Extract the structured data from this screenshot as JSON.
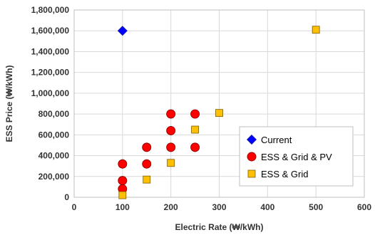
{
  "chart_data": {
    "type": "scatter",
    "xlabel": "Electric Rate (₩/kWh)",
    "ylabel": "ESS Price (₩/kWh)",
    "xlim": [
      0,
      600
    ],
    "ylim": [
      0,
      1800000
    ],
    "x_ticks": [
      "0",
      "100",
      "200",
      "300",
      "400",
      "500",
      "600"
    ],
    "y_ticks": [
      "0",
      "200,000",
      "400,000",
      "600,000",
      "800,000",
      "1,000,000",
      "1,200,000",
      "1,400,000",
      "1,600,000",
      "1,800,000"
    ],
    "grid": true,
    "legend_position": "bottom-right",
    "series": [
      {
        "name": "Current",
        "marker": "diamond",
        "color": "#0000ff",
        "points": [
          [
            100,
            1600000
          ]
        ]
      },
      {
        "name": "ESS & Grid & PV",
        "marker": "circle",
        "color": "#ff0000",
        "points": [
          [
            100,
            80000
          ],
          [
            100,
            160000
          ],
          [
            100,
            320000
          ],
          [
            150,
            320000
          ],
          [
            150,
            480000
          ],
          [
            200,
            480000
          ],
          [
            200,
            640000
          ],
          [
            200,
            800000
          ],
          [
            250,
            480000
          ],
          [
            250,
            800000
          ]
        ]
      },
      {
        "name": "ESS & Grid",
        "marker": "square",
        "color": "#ffc000",
        "points": [
          [
            100,
            20000
          ],
          [
            150,
            170000
          ],
          [
            200,
            330000
          ],
          [
            250,
            650000
          ],
          [
            300,
            810000
          ],
          [
            500,
            1610000
          ]
        ]
      }
    ]
  }
}
